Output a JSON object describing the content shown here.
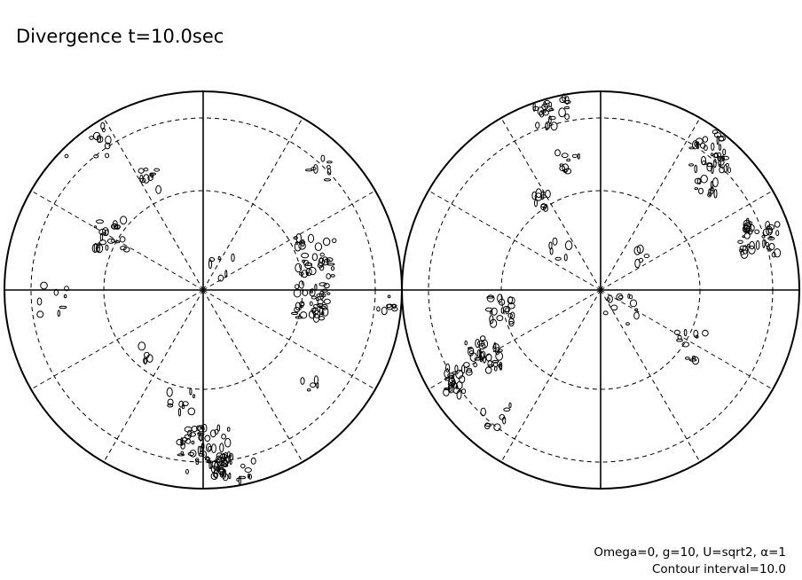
{
  "header": {
    "title": "Divergence t=10.0sec"
  },
  "footer": {
    "lines": [
      "Omega=0, g=10, U=sqrt2, α=1",
      "Contour interval=10.0"
    ]
  }
}
